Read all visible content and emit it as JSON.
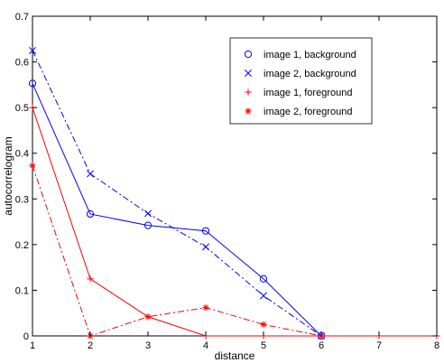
{
  "chart_data": {
    "type": "line",
    "title": "",
    "xlabel": "distance",
    "ylabel": "autocorrelogram",
    "xlim": [
      1,
      8
    ],
    "ylim": [
      0,
      0.7
    ],
    "xticks": [
      "1",
      "2",
      "3",
      "4",
      "5",
      "6",
      "7",
      "8"
    ],
    "yticks": [
      "0",
      "0.1",
      "0.2",
      "0.3",
      "0.4",
      "0.5",
      "0.6",
      "0.7"
    ],
    "grid": false,
    "legend_position": "top-right",
    "series": [
      {
        "name": "image 1, background",
        "x": [
          1,
          2,
          3,
          4,
          5,
          6
        ],
        "y": [
          0.553,
          0.267,
          0.242,
          0.23,
          0.125,
          0.0
        ],
        "color": "#0000ff",
        "line_style": "solid",
        "marker": "circle"
      },
      {
        "name": "image 2, background",
        "x": [
          1,
          2,
          3,
          4,
          5,
          6
        ],
        "y": [
          0.625,
          0.355,
          0.268,
          0.195,
          0.088,
          0.0
        ],
        "color": "#0000ff",
        "line_style": "dashdot",
        "marker": "x"
      },
      {
        "name": "image 1, foreground",
        "x": [
          1,
          2,
          3,
          4,
          5,
          6,
          7,
          8
        ],
        "y": [
          0.5,
          0.125,
          0.042,
          0.0,
          0.0,
          0.0,
          0.0,
          0.0
        ],
        "color": "#ff0000",
        "line_style": "solid",
        "marker": "plus"
      },
      {
        "name": "image 2, foreground",
        "x": [
          1,
          2,
          3,
          4,
          5,
          6
        ],
        "y": [
          0.373,
          0.0,
          0.042,
          0.062,
          0.025,
          0.0
        ],
        "color": "#ff0000",
        "line_style": "dashdot",
        "marker": "star"
      }
    ]
  }
}
